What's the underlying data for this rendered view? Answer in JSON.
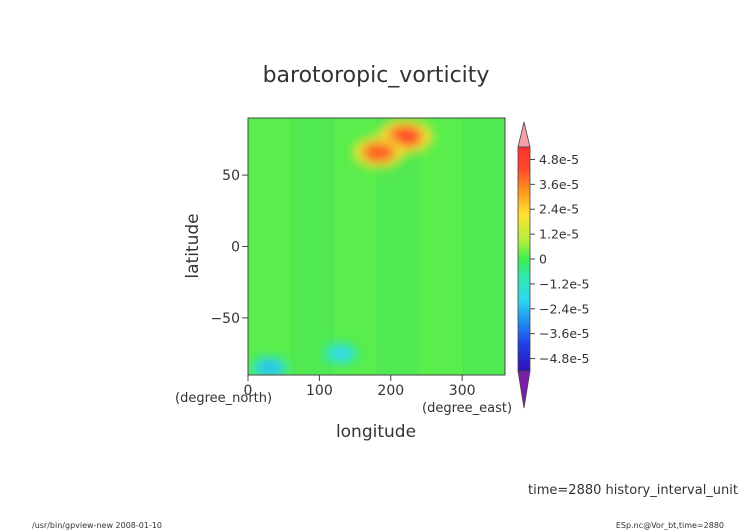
{
  "chart_data": {
    "type": "heatmap",
    "title": "barotoropic_vorticity",
    "xlabel": "longitude",
    "ylabel": "latitude",
    "x_unit": "(degree_east)",
    "y_unit": "(degree_north)",
    "xlim": [
      0,
      360
    ],
    "ylim": [
      -90,
      90
    ],
    "x_ticks": [
      0,
      100,
      200,
      300
    ],
    "y_ticks": [
      50,
      0,
      -50
    ],
    "colorbar": {
      "range": [
        -5.4e-05,
        5.4e-05
      ],
      "ticks": [
        4.8e-05,
        3.6e-05,
        2.4e-05,
        1.2e-05,
        0,
        -1.2e-05,
        -2.4e-05,
        -3.6e-05,
        -4.8e-05
      ],
      "tick_labels": [
        "4.8e-5",
        "3.6e-5",
        "2.4e-5",
        "1.2e-5",
        "0",
        "−1.2e-5",
        "−2.4e-5",
        "−3.6e-5",
        "−4.8e-5"
      ],
      "over_color": "#f3a0a8",
      "under_color": "#7a1fa8"
    },
    "background_value": 2e-06,
    "features": [
      {
        "lon": 220,
        "lat": 77,
        "value": 4.4e-05
      },
      {
        "lon": 183,
        "lat": 66,
        "value": 4e-05
      },
      {
        "lon": 30,
        "lat": -85,
        "value": -2.4e-05
      },
      {
        "lon": 130,
        "lat": -75,
        "value": -2e-05
      }
    ]
  },
  "annotations": {
    "time": "time=2880  history_interval_unit",
    "footer_left": "/usr/bin/gpview-new  2008-01-10",
    "footer_right": "ESp.nc@Vor_bt,time=2880"
  }
}
